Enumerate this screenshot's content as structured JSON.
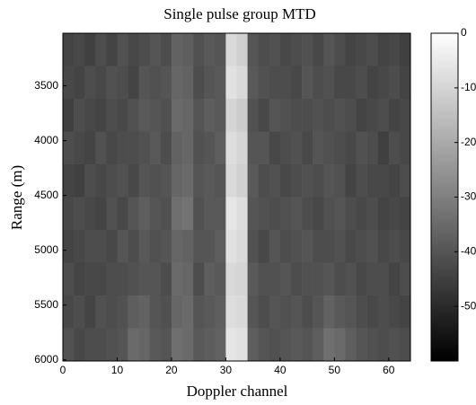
{
  "chart_data": {
    "type": "heatmap",
    "title": "Single pulse group MTD",
    "x_label": "Doppler channel",
    "y_label": "Range  (m)",
    "xlim": [
      0,
      64
    ],
    "xticks": [
      0,
      10,
      20,
      30,
      40,
      50,
      60
    ],
    "ylim": [
      3020,
      6010
    ],
    "yticks": [
      3500,
      4000,
      4500,
      5000,
      5500,
      6000
    ],
    "y_reversed": true,
    "zlim": [
      -60,
      0
    ],
    "zticks": [
      0,
      -10,
      -20,
      -30,
      -40,
      -50
    ],
    "colormap": "gray",
    "z": [
      [
        -44,
        -43,
        -45,
        -42,
        -44,
        -41,
        -43,
        -42,
        -40,
        -42,
        -37,
        -38,
        -41,
        -39,
        -40,
        -9,
        -11,
        -40,
        -42,
        -41,
        -43,
        -42,
        -41,
        -43,
        -40,
        -42,
        -44,
        -43,
        -42,
        -44,
        -43,
        -45
      ],
      [
        -43,
        -44,
        -42,
        -43,
        -41,
        -42,
        -44,
        -40,
        -41,
        -40,
        -36,
        -37,
        -42,
        -40,
        -39,
        -7,
        -9,
        -39,
        -41,
        -42,
        -42,
        -43,
        -40,
        -42,
        -41,
        -43,
        -43,
        -42,
        -44,
        -43,
        -42,
        -44
      ],
      [
        -45,
        -42,
        -43,
        -44,
        -42,
        -43,
        -41,
        -39,
        -40,
        -41,
        -35,
        -36,
        -40,
        -38,
        -39,
        -10,
        -12,
        -41,
        -43,
        -40,
        -41,
        -42,
        -42,
        -41,
        -42,
        -41,
        -42,
        -44,
        -43,
        -42,
        -44,
        -43
      ],
      [
        -42,
        -43,
        -44,
        -41,
        -43,
        -42,
        -42,
        -41,
        -39,
        -42,
        -37,
        -36,
        -41,
        -40,
        -38,
        -8,
        -10,
        -40,
        -40,
        -43,
        -42,
        -41,
        -43,
        -40,
        -41,
        -42,
        -43,
        -41,
        -42,
        -45,
        -42,
        -43
      ],
      [
        -44,
        -45,
        -42,
        -43,
        -42,
        -41,
        -43,
        -40,
        -41,
        -40,
        -36,
        -35,
        -40,
        -39,
        -40,
        -9,
        -11,
        -39,
        -42,
        -41,
        -43,
        -42,
        -41,
        -42,
        -40,
        -41,
        -44,
        -42,
        -43,
        -43,
        -44,
        -42
      ],
      [
        -43,
        -42,
        -43,
        -44,
        -41,
        -43,
        -40,
        -38,
        -40,
        -41,
        -34,
        -33,
        -41,
        -39,
        -39,
        -6,
        -8,
        -40,
        -41,
        -42,
        -41,
        -40,
        -42,
        -43,
        -41,
        -40,
        -42,
        -43,
        -42,
        -44,
        -43,
        -44
      ],
      [
        -44,
        -43,
        -42,
        -42,
        -43,
        -40,
        -42,
        -39,
        -41,
        -40,
        -36,
        -37,
        -40,
        -40,
        -38,
        -7,
        -9,
        -41,
        -43,
        -40,
        -42,
        -41,
        -40,
        -42,
        -42,
        -41,
        -43,
        -42,
        -41,
        -43,
        -42,
        -43
      ],
      [
        -42,
        -44,
        -43,
        -43,
        -42,
        -42,
        -41,
        -40,
        -40,
        -42,
        -35,
        -36,
        -42,
        -38,
        -39,
        -9,
        -10,
        -39,
        -41,
        -41,
        -40,
        -42,
        -41,
        -41,
        -40,
        -42,
        -41,
        -43,
        -42,
        -42,
        -44,
        -42
      ],
      [
        -43,
        -42,
        -44,
        -41,
        -42,
        -41,
        -38,
        -37,
        -40,
        -41,
        -36,
        -35,
        -40,
        -39,
        -38,
        -8,
        -9,
        -40,
        -42,
        -40,
        -41,
        -40,
        -42,
        -40,
        -37,
        -39,
        -40,
        -42,
        -43,
        -42,
        -43,
        -44
      ],
      [
        -41,
        -43,
        -42,
        -42,
        -41,
        -40,
        -35,
        -36,
        -39,
        -40,
        -34,
        -35,
        -39,
        -38,
        -37,
        -6,
        -7,
        -38,
        -40,
        -41,
        -40,
        -39,
        -40,
        -38,
        -34,
        -35,
        -38,
        -40,
        -41,
        -42,
        -41,
        -42
      ]
    ]
  }
}
